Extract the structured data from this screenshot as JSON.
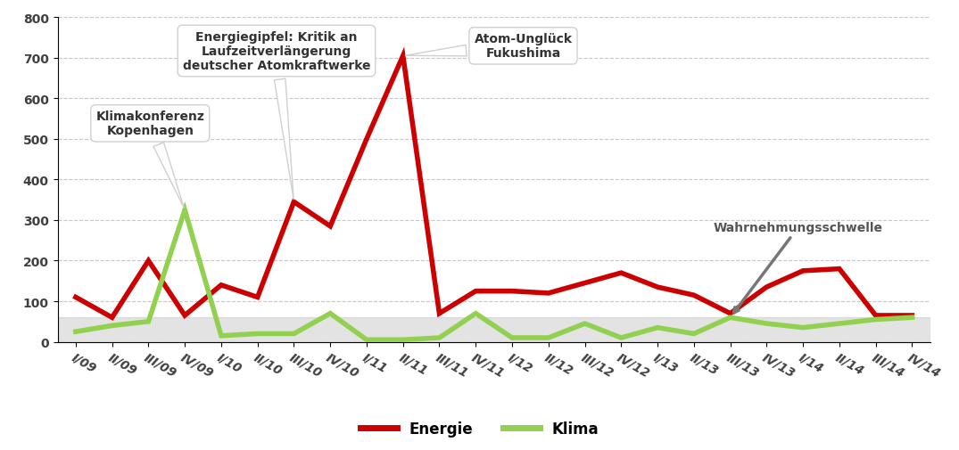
{
  "chart_data": {
    "type": "line",
    "categories": [
      "I/09",
      "II/09",
      "III/09",
      "IV/09",
      "I/10",
      "II/10",
      "III/10",
      "IV/10",
      "I/11",
      "II/11",
      "III/11",
      "IV/11",
      "I/12",
      "II/12",
      "III/12",
      "IV/12",
      "I/13",
      "II/13",
      "III/13",
      "IV/13",
      "I/14",
      "II/14",
      "III/14",
      "IV/14"
    ],
    "series": [
      {
        "name": "Energie",
        "color": "#cc0000",
        "values": [
          110,
          60,
          200,
          65,
          140,
          110,
          345,
          285,
          500,
          705,
          70,
          125,
          125,
          120,
          145,
          170,
          135,
          115,
          70,
          135,
          175,
          180,
          65,
          65
        ]
      },
      {
        "name": "Klima",
        "color": "#92d050",
        "values": [
          25,
          40,
          50,
          325,
          15,
          20,
          20,
          70,
          5,
          5,
          10,
          70,
          10,
          10,
          45,
          10,
          35,
          20,
          60,
          45,
          35,
          45,
          55,
          60
        ]
      }
    ],
    "ylim": [
      0,
      800
    ],
    "yticks": [
      0,
      100,
      200,
      300,
      400,
      500,
      600,
      700,
      800
    ],
    "grid": true,
    "legend": "lower center",
    "annotations": [
      {
        "text": "Klimakonferenz\nKopenhagen",
        "category": "IV/09",
        "series": "Klima"
      },
      {
        "text": "Energiegipfel: Kritik an\nLaufzeitverlängerung\ndeutscher Atomkraftwerke",
        "category": "III/10",
        "series": "Energie"
      },
      {
        "text": "Atom-Unglück\nFukushima",
        "category": "II/11",
        "series": "Energie"
      }
    ],
    "threshold": {
      "label": "Wahrnehmungsschwelle",
      "value": 60,
      "category": "III/13"
    }
  }
}
